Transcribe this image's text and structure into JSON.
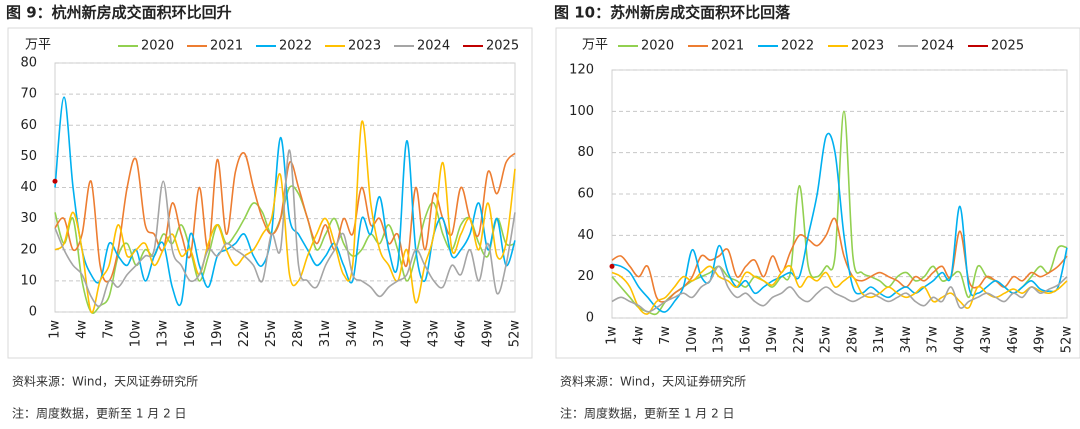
{
  "chart_data": [
    {
      "type": "line",
      "title": "图 9：杭州新房成交面积环比回升",
      "y_label": "万平",
      "source": "资料来源：Wind，天风证券研究所",
      "note": "注：周度数据，更新至 1 月 2 日",
      "categories": [
        "1w",
        null,
        null,
        "4w",
        null,
        null,
        "7w",
        null,
        null,
        "10w",
        null,
        null,
        "13w",
        null,
        null,
        "16w",
        null,
        null,
        "19w",
        null,
        null,
        "22w",
        null,
        null,
        "25w",
        null,
        null,
        "28w",
        null,
        null,
        "31w",
        null,
        null,
        "34w",
        null,
        null,
        "37w",
        null,
        null,
        "40w",
        null,
        null,
        "43w",
        null,
        null,
        "46w",
        null,
        null,
        "49w",
        null,
        null,
        "52w"
      ],
      "ylim": [
        0,
        80
      ],
      "yticks": [
        0,
        10,
        20,
        30,
        40,
        50,
        60,
        70,
        80
      ],
      "grid": true,
      "series": [
        {
          "name": "2020",
          "color": "#92d050",
          "values": [
            32,
            22,
            30,
            10,
            0,
            2,
            5,
            18,
            22,
            15,
            20,
            18,
            25,
            22,
            28,
            20,
            10,
            18,
            28,
            22,
            25,
            30,
            35,
            32,
            25,
            30,
            40,
            38,
            30,
            20,
            25,
            30,
            22,
            18,
            20,
            25,
            22,
            28,
            20,
            10,
            18,
            30,
            35,
            25,
            20,
            28,
            30,
            22,
            18,
            30,
            22,
            22
          ]
        },
        {
          "name": "2021",
          "color": "#ed7d31",
          "values": [
            27,
            30,
            20,
            25,
            42,
            15,
            10,
            20,
            40,
            49,
            28,
            25,
            20,
            35,
            25,
            18,
            40,
            20,
            49,
            25,
            45,
            51,
            40,
            30,
            25,
            30,
            48,
            40,
            30,
            22,
            28,
            20,
            30,
            25,
            40,
            28,
            30,
            22,
            25,
            15,
            40,
            20,
            38,
            30,
            25,
            40,
            30,
            25,
            45,
            38,
            48,
            51
          ]
        },
        {
          "name": "2022",
          "color": "#00b0f0",
          "values": [
            40,
            69,
            40,
            20,
            12,
            10,
            22,
            18,
            15,
            20,
            10,
            18,
            22,
            8,
            3,
            25,
            15,
            8,
            18,
            20,
            22,
            25,
            18,
            15,
            25,
            56,
            30,
            25,
            20,
            15,
            18,
            22,
            15,
            10,
            30,
            25,
            37,
            20,
            15,
            55,
            20,
            10,
            25,
            30,
            18,
            20,
            25,
            35,
            20,
            30,
            15,
            23
          ]
        },
        {
          "name": "2023",
          "color": "#ffc000",
          "values": [
            20,
            22,
            32,
            20,
            0,
            10,
            15,
            28,
            18,
            20,
            22,
            15,
            20,
            25,
            18,
            20,
            12,
            22,
            28,
            20,
            15,
            18,
            20,
            25,
            30,
            44,
            12,
            10,
            18,
            25,
            30,
            22,
            12,
            15,
            61,
            35,
            20,
            15,
            10,
            20,
            3,
            15,
            25,
            48,
            20,
            25,
            30,
            20,
            35,
            18,
            22,
            46
          ]
        },
        {
          "name": "2024",
          "color": "#a5a5a5",
          "values": [
            27,
            20,
            15,
            12,
            5,
            2,
            10,
            8,
            12,
            15,
            18,
            20,
            42,
            20,
            15,
            10,
            12,
            20,
            18,
            22,
            20,
            18,
            15,
            10,
            25,
            20,
            52,
            15,
            10,
            8,
            15,
            20,
            25,
            12,
            10,
            8,
            5,
            8,
            10,
            12,
            20,
            15,
            10,
            8,
            15,
            12,
            20,
            10,
            22,
            6,
            15,
            32
          ]
        },
        {
          "name": "2025",
          "color": "#c00000",
          "values": [
            42,
            null,
            null,
            null,
            null,
            null,
            null,
            null,
            null,
            null,
            null,
            null,
            null,
            null,
            null,
            null,
            null,
            null,
            null,
            null,
            null,
            null,
            null,
            null,
            null,
            null,
            null,
            null,
            null,
            null,
            null,
            null,
            null,
            null,
            null,
            null,
            null,
            null,
            null,
            null,
            null,
            null,
            null,
            null,
            null,
            null,
            null,
            null,
            null,
            null,
            null,
            null
          ]
        }
      ]
    },
    {
      "type": "line",
      "title": "图 10：苏州新房成交面积环比回落",
      "y_label": "万平",
      "source": "资料来源：Wind，天风证券研究所",
      "note": "注：周度数据，更新至 1 月 2 日",
      "categories": [
        "1w",
        null,
        null,
        "4w",
        null,
        null,
        "7w",
        null,
        null,
        "10w",
        null,
        null,
        "13w",
        null,
        null,
        "16w",
        null,
        null,
        "19w",
        null,
        null,
        "22w",
        null,
        null,
        "25w",
        null,
        null,
        "28w",
        null,
        null,
        "31w",
        null,
        null,
        "34w",
        null,
        null,
        "37w",
        null,
        null,
        "40w",
        null,
        null,
        "43w",
        null,
        null,
        "46w",
        null,
        null,
        "49w",
        null,
        null,
        "52w"
      ],
      "ylim": [
        0,
        120
      ],
      "yticks": [
        0,
        20,
        40,
        60,
        80,
        100,
        120
      ],
      "grid": true,
      "series": [
        {
          "name": "2020",
          "color": "#92d050",
          "values": [
            20,
            15,
            10,
            5,
            3,
            2,
            8,
            12,
            15,
            18,
            20,
            22,
            25,
            20,
            18,
            15,
            20,
            18,
            15,
            20,
            22,
            64,
            25,
            20,
            25,
            30,
            100,
            30,
            22,
            20,
            18,
            15,
            20,
            22,
            18,
            20,
            25,
            18,
            20,
            22,
            10,
            25,
            20,
            18,
            15,
            12,
            15,
            20,
            25,
            22,
            34,
            34
          ]
        },
        {
          "name": "2021",
          "color": "#ed7d31",
          "values": [
            28,
            30,
            25,
            20,
            25,
            10,
            8,
            12,
            15,
            20,
            30,
            28,
            30,
            33,
            20,
            25,
            28,
            20,
            30,
            22,
            32,
            40,
            38,
            35,
            40,
            48,
            30,
            20,
            18,
            20,
            22,
            20,
            18,
            15,
            20,
            18,
            22,
            25,
            20,
            42,
            18,
            15,
            20,
            18,
            15,
            20,
            18,
            22,
            20,
            22,
            25,
            30
          ]
        },
        {
          "name": "2022",
          "color": "#00b0f0",
          "values": [
            26,
            25,
            22,
            15,
            10,
            5,
            3,
            8,
            15,
            33,
            20,
            18,
            35,
            22,
            15,
            18,
            12,
            15,
            18,
            20,
            22,
            20,
            40,
            60,
            88,
            80,
            40,
            15,
            12,
            15,
            12,
            10,
            13,
            15,
            12,
            15,
            18,
            22,
            20,
            54,
            15,
            12,
            15,
            18,
            15,
            12,
            15,
            18,
            14,
            13,
            15,
            34
          ]
        },
        {
          "name": "2023",
          "color": "#ffc000",
          "values": [
            22,
            20,
            15,
            5,
            2,
            8,
            10,
            15,
            20,
            18,
            22,
            25,
            20,
            18,
            15,
            22,
            20,
            18,
            16,
            22,
            25,
            15,
            20,
            18,
            22,
            15,
            18,
            20,
            12,
            10,
            12,
            15,
            12,
            10,
            12,
            15,
            8,
            10,
            12,
            8,
            5,
            15,
            12,
            10,
            12,
            14,
            12,
            15,
            13,
            12,
            14,
            18
          ]
        },
        {
          "name": "2024",
          "color": "#a5a5a5",
          "values": [
            8,
            10,
            8,
            6,
            3,
            5,
            8,
            10,
            12,
            10,
            15,
            18,
            25,
            15,
            10,
            12,
            8,
            6,
            10,
            12,
            15,
            10,
            8,
            12,
            15,
            12,
            10,
            8,
            10,
            12,
            10,
            8,
            10,
            12,
            8,
            6,
            10,
            8,
            15,
            5,
            8,
            10,
            12,
            10,
            8,
            12,
            10,
            15,
            12,
            14,
            16,
            20
          ]
        },
        {
          "name": "2025",
          "color": "#c00000",
          "values": [
            25,
            null,
            null,
            null,
            null,
            null,
            null,
            null,
            null,
            null,
            null,
            null,
            null,
            null,
            null,
            null,
            null,
            null,
            null,
            null,
            null,
            null,
            null,
            null,
            null,
            null,
            null,
            null,
            null,
            null,
            null,
            null,
            null,
            null,
            null,
            null,
            null,
            null,
            null,
            null,
            null,
            null,
            null,
            null,
            null,
            null,
            null,
            null,
            null,
            null,
            null,
            null
          ]
        }
      ]
    }
  ]
}
